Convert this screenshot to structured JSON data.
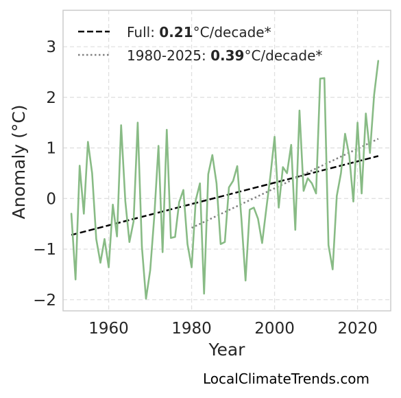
{
  "chart_data": {
    "type": "line",
    "xlabel": "Year",
    "ylabel": "Anomaly (°C)",
    "xlim": [
      1949,
      2028
    ],
    "ylim": [
      -2.22,
      3.72
    ],
    "xticks": [
      1960,
      1980,
      2000,
      2020
    ],
    "yticks": [
      -2,
      -1,
      0,
      1,
      2,
      3
    ],
    "ytick_labels": [
      "−2",
      "−1",
      "0",
      "1",
      "2",
      "3"
    ],
    "grid": true,
    "legend_position": "top-left",
    "colors": {
      "series": "#88bb85",
      "full_trend": "#000000",
      "recent_trend": "#808080"
    },
    "x": [
      1951,
      1952,
      1953,
      1954,
      1955,
      1956,
      1957,
      1958,
      1959,
      1960,
      1961,
      1962,
      1963,
      1964,
      1965,
      1966,
      1967,
      1968,
      1969,
      1970,
      1971,
      1972,
      1973,
      1974,
      1975,
      1976,
      1977,
      1978,
      1979,
      1980,
      1981,
      1982,
      1983,
      1984,
      1985,
      1986,
      1987,
      1988,
      1989,
      1990,
      1991,
      1992,
      1993,
      1994,
      1995,
      1996,
      1997,
      1998,
      1999,
      2000,
      2001,
      2002,
      2003,
      2004,
      2005,
      2006,
      2007,
      2008,
      2009,
      2010,
      2011,
      2012,
      2013,
      2014,
      2015,
      2016,
      2017,
      2018,
      2019,
      2020,
      2021,
      2022,
      2023,
      2024,
      2025
    ],
    "series": [
      {
        "values": [
          -0.3,
          -1.6,
          0.65,
          -0.3,
          1.12,
          0.5,
          -0.8,
          -1.27,
          -0.8,
          -1.36,
          -0.12,
          -0.75,
          1.45,
          -0.05,
          -0.86,
          -0.45,
          1.5,
          -0.95,
          -1.98,
          -1.42,
          -0.35,
          1.04,
          -1.06,
          1.36,
          -0.78,
          -0.76,
          -0.07,
          0.17,
          -0.9,
          -1.36,
          -0.03,
          0.3,
          -1.88,
          0.48,
          0.86,
          0.3,
          -0.9,
          -0.86,
          0.22,
          0.35,
          0.64,
          -0.4,
          -1.62,
          -0.22,
          -0.18,
          -0.4,
          -0.88,
          -0.2,
          0.45,
          1.22,
          -0.18,
          0.62,
          0.5,
          1.06,
          -0.62,
          1.74,
          0.15,
          0.4,
          0.3,
          0.1,
          2.37,
          2.38,
          -0.92,
          -1.4,
          0.05,
          0.5,
          1.28,
          0.85,
          -0.06,
          1.5,
          0.1,
          1.68,
          0.9,
          2.05,
          2.72
        ]
      }
    ],
    "trends": [
      {
        "label_prefix": "Full: ",
        "label_value": "0.21",
        "label_suffix": "°C/decade*",
        "style": "dashed",
        "x": [
          1951,
          2025
        ],
        "y": [
          -0.72,
          0.84
        ]
      },
      {
        "label_prefix": "1980-2025: ",
        "label_value": "0.39",
        "label_suffix": "°C/decade*",
        "style": "dotted",
        "x": [
          1980,
          2025
        ],
        "y": [
          -0.58,
          1.18
        ]
      }
    ]
  },
  "credit": "LocalClimateTrends.com"
}
